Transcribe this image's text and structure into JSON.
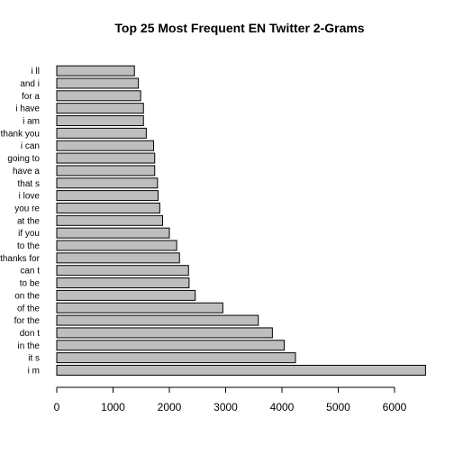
{
  "chart_data": {
    "type": "bar",
    "orientation": "horizontal",
    "title": "Top 25 Most Frequent EN Twitter 2-Grams",
    "xlabel": "",
    "ylabel": "",
    "xlim": [
      0,
      6560
    ],
    "xticks": [
      "0",
      "1000",
      "2000",
      "3000",
      "4000",
      "5000",
      "6000"
    ],
    "grid": false,
    "categories": [
      "i m",
      "it s",
      "in the",
      "don t",
      "for the",
      "of the",
      "on the",
      "to be",
      "can t",
      "thanks for",
      "to the",
      "if you",
      "at the",
      "you re",
      "i love",
      "that s",
      "have a",
      "going to",
      "i can",
      "thank you",
      "i am",
      "i have",
      "for a",
      "and i",
      "i ll"
    ],
    "values": [
      6550,
      4240,
      4040,
      3830,
      3580,
      2950,
      2460,
      2350,
      2340,
      2180,
      2130,
      2000,
      1880,
      1830,
      1800,
      1790,
      1740,
      1740,
      1720,
      1590,
      1540,
      1540,
      1490,
      1450,
      1380
    ],
    "colors": {
      "bar_fill": "#bebebe",
      "bar_stroke": "#000000"
    }
  }
}
